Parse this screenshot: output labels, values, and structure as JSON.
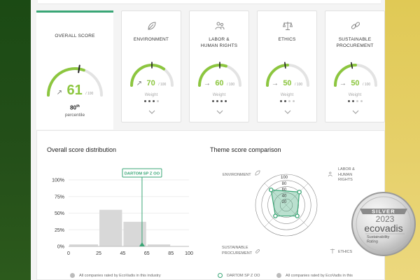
{
  "overall": {
    "title": "OVERALL SCORE",
    "score": "61",
    "out_of": "/ 100",
    "trend_arrow": "↗",
    "percentile_number": "80",
    "percentile_suffix": "th",
    "percentile_label": "percentile",
    "gauge_fraction": 0.61,
    "marker_fraction": 0.55
  },
  "themes": [
    {
      "title": "ENVIRONMENT",
      "icon": "leaf-icon",
      "score": "70",
      "out_of": "/ 100",
      "trend_arrow": "↗",
      "weight_label": "Weight",
      "weight_dots": 3,
      "gauge_fraction": 0.7,
      "marker_fraction": 0.5
    },
    {
      "title": "LABOR & HUMAN RIGHTS",
      "icon": "people-icon",
      "score": "60",
      "out_of": "/ 100",
      "trend_arrow": "→",
      "weight_label": "Weight",
      "weight_dots": 4,
      "gauge_fraction": 0.6,
      "marker_fraction": 0.5
    },
    {
      "title": "ETHICS",
      "icon": "scales-icon",
      "score": "50",
      "out_of": "/ 100",
      "trend_arrow": "→",
      "weight_label": "Weight",
      "weight_dots": 2,
      "gauge_fraction": 0.5,
      "marker_fraction": 0.46
    },
    {
      "title": "SUSTAINABLE PROCUREMENT",
      "icon": "chain-link-icon",
      "score": "50",
      "out_of": "/ 100",
      "trend_arrow": "→",
      "weight_label": "Weight",
      "weight_dots": 2,
      "gauge_fraction": 0.5,
      "marker_fraction": 0.44
    }
  ],
  "distribution": {
    "title": "Overall score distribution",
    "company_label": "DARTOM SP Z OO",
    "legend": "All companies rated by EcoVadis in this industry"
  },
  "comparison": {
    "title": "Theme score comparison",
    "legend_company": "DARTOM SP Z OO",
    "legend_all": "All companies rated by EcoVadis in this"
  },
  "badge": {
    "level": "SILVER",
    "year": "2023",
    "brand": "ecovadis",
    "tagline_1": "Sustainability",
    "tagline_2": "Rating"
  },
  "colors": {
    "accent_green": "#8cc63f",
    "teal": "#3aa676",
    "gauge_track": "#e3e3e3",
    "bar_gray": "#d8d8d8"
  },
  "chart_data": [
    {
      "type": "bar",
      "title": "Overall score distribution",
      "x_ticks": [
        "0",
        "25",
        "45",
        "65",
        "85",
        "100"
      ],
      "y_ticks": [
        "100%",
        "75%",
        "50%",
        "25%",
        "0%"
      ],
      "bins": [
        [
          0,
          25
        ],
        [
          25,
          45
        ],
        [
          45,
          65
        ],
        [
          65,
          85
        ],
        [
          85,
          100
        ]
      ],
      "values": [
        3,
        55,
        37,
        3,
        0
      ],
      "marker": {
        "label": "DARTOM SP Z OO",
        "x": 61
      },
      "xlim": [
        0,
        100
      ],
      "ylim": [
        0,
        100
      ],
      "legend": [
        "All companies rated by EcoVadis in this industry"
      ]
    },
    {
      "type": "radar",
      "title": "Theme score comparison",
      "axes": [
        "ENVIRONMENT",
        "LABOR & HUMAN RIGHTS",
        "ETHICS",
        "SUSTAINABLE PROCUREMENT"
      ],
      "radial_ticks": [
        "100",
        "80",
        "60",
        "40",
        "20"
      ],
      "rmax": 100,
      "series": [
        {
          "name": "DARTOM SP Z OO",
          "values": [
            70,
            60,
            50,
            50
          ]
        }
      ],
      "legend": [
        "DARTOM SP Z OO",
        "All companies rated by EcoVadis in this"
      ]
    }
  ]
}
